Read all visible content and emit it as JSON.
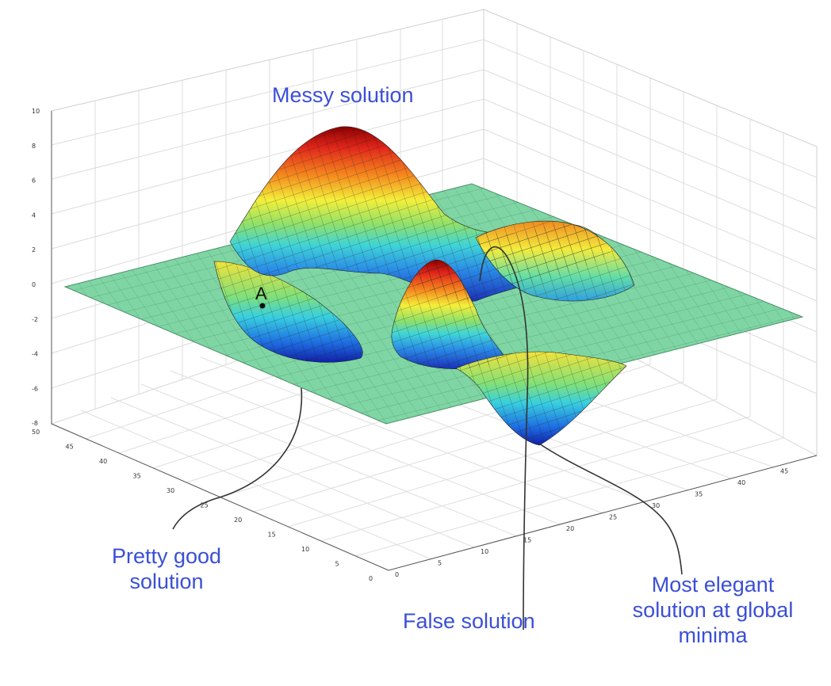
{
  "annotations": {
    "messy": "Messy solution",
    "pretty_good_line1": "Pretty good",
    "pretty_good_line2": "solution",
    "false_solution": "False solution",
    "elegant_line1": "Most elegant",
    "elegant_line2": "solution at global",
    "elegant_line3": "minima"
  },
  "point_label": "A",
  "colors": {
    "annotation_text": "#3b4fd6",
    "leader_line": "#333333",
    "flat_surface": "#7fd6a4",
    "grid_line": "#d9d9d9",
    "axis_line": "#555555"
  },
  "surface": {
    "colormap": "jet",
    "z_ticks": [
      "10",
      "8",
      "6",
      "4",
      "2",
      "0",
      "-2",
      "-4",
      "-6",
      "-8"
    ],
    "x_ticks": [
      "50",
      "45",
      "40",
      "35",
      "30",
      "25",
      "20",
      "15",
      "10",
      "5",
      "0"
    ],
    "y_ticks": [
      "0",
      "5",
      "10",
      "15",
      "20",
      "25",
      "30",
      "35",
      "40",
      "45"
    ]
  }
}
